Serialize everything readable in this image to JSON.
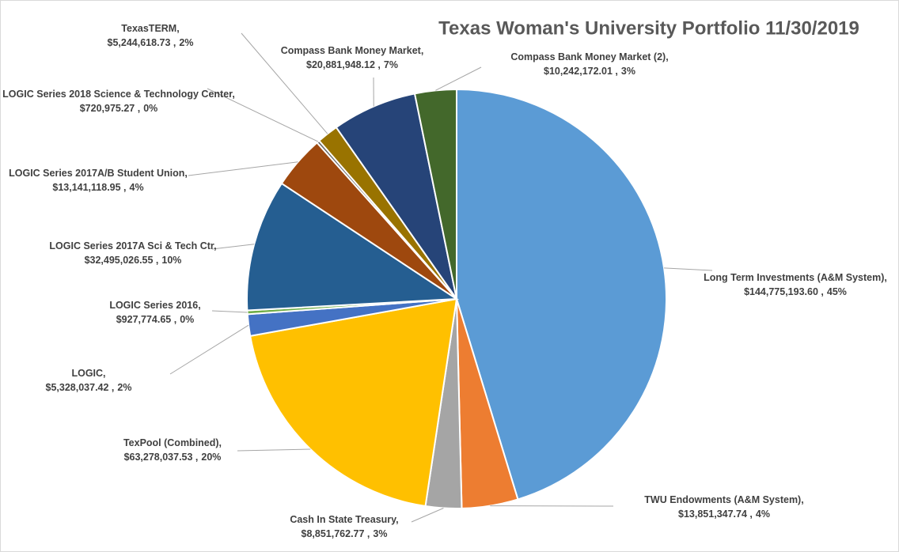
{
  "chart_data": {
    "type": "pie",
    "title": "Texas Woman's University Portfolio 11/30/2019",
    "categories": [
      "Long Term Investments (A&M System),",
      "TWU Endowments (A&M System),",
      "Cash In State Treasury,",
      "TexPool (Combined),",
      "LOGIC,",
      "LOGIC Series 2016,",
      "LOGIC Series 2017A Sci & Tech Ctr,",
      "LOGIC Series 2017A/B Student Union,",
      "LOGIC Series 2018 Science & Technology Center,",
      "TexasTERM,",
      "Compass Bank Money Market,",
      "Compass Bank Money Market (2),"
    ],
    "values": [
      144775193.6,
      13851347.74,
      8851762.77,
      63278037.53,
      5328037.42,
      927774.65,
      32495026.55,
      13141118.95,
      720975.27,
      5244618.73,
      20881948.12,
      10242172.01
    ],
    "value_labels": [
      "$144,775,193.60 ,",
      "$13,851,347.74 ,",
      "$8,851,762.77 ,",
      "$63,278,037.53 ,",
      "$5,328,037.42 ,",
      "$927,774.65 ,",
      "$32,495,026.55 ,",
      "$13,141,118.95 ,",
      "$720,975.27 ,",
      "$5,244,618.73 ,",
      "$20,881,948.12 ,",
      "$10,242,172.01 ,"
    ],
    "percents": [
      45,
      4,
      3,
      20,
      2,
      0,
      10,
      4,
      0,
      2,
      7,
      3
    ],
    "percent_labels": [
      "45%",
      "4%",
      "3%",
      "20%",
      "2%",
      "0%",
      "10%",
      "4%",
      "0%",
      "2%",
      "7%",
      "3%"
    ],
    "colors": [
      "#5b9bd5",
      "#ed7d31",
      "#a5a5a5",
      "#ffc000",
      "#4472c4",
      "#70ad47",
      "#255e91",
      "#9e480e",
      "#636363",
      "#997300",
      "#264478",
      "#43682b"
    ]
  }
}
